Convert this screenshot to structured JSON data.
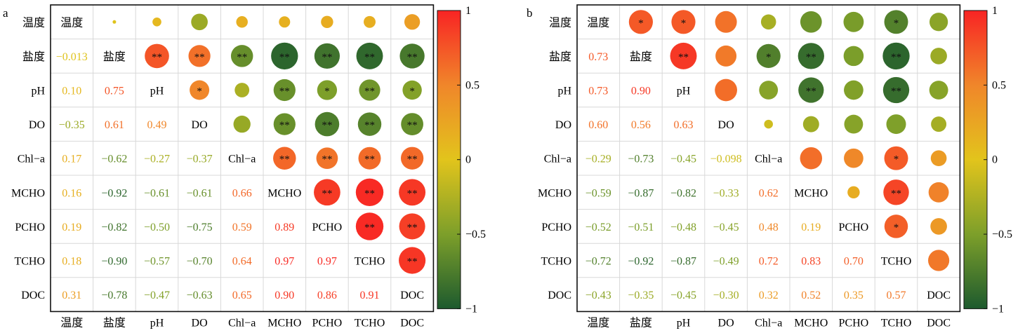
{
  "chart_data": [
    {
      "type": "heatmap",
      "panel_label": "a",
      "variables": [
        "温度",
        "盐度",
        "pH",
        "DO",
        "Chl−a",
        "MCHO",
        "PCHO",
        "TCHO",
        "DOC"
      ],
      "matrix": [
        [
          1,
          -0.013,
          0.1,
          -0.35,
          0.17,
          0.16,
          0.19,
          0.18,
          0.31
        ],
        [
          -0.013,
          1,
          0.75,
          0.61,
          -0.62,
          -0.92,
          -0.82,
          -0.9,
          -0.78
        ],
        [
          0.1,
          0.75,
          1,
          0.49,
          -0.27,
          -0.61,
          -0.5,
          -0.57,
          -0.47
        ],
        [
          -0.35,
          0.61,
          0.49,
          1,
          -0.37,
          -0.61,
          -0.75,
          -0.7,
          -0.63
        ],
        [
          0.17,
          -0.62,
          -0.27,
          -0.37,
          1,
          0.66,
          0.59,
          0.64,
          0.65
        ],
        [
          0.16,
          -0.92,
          -0.61,
          -0.61,
          0.66,
          1,
          0.89,
          0.97,
          0.9
        ],
        [
          0.19,
          -0.82,
          -0.5,
          -0.75,
          0.59,
          0.89,
          1,
          0.97,
          0.86
        ],
        [
          0.18,
          -0.9,
          -0.57,
          -0.7,
          0.64,
          0.97,
          0.97,
          1,
          0.91
        ],
        [
          0.31,
          -0.78,
          -0.47,
          -0.63,
          0.65,
          0.9,
          0.86,
          0.91,
          1
        ]
      ],
      "lower_labels": [
        [
          null,
          null,
          null,
          null,
          null,
          null,
          null,
          null,
          null
        ],
        [
          "−0.013",
          null,
          null,
          null,
          null,
          null,
          null,
          null,
          null
        ],
        [
          "0.10",
          "0.75",
          null,
          null,
          null,
          null,
          null,
          null,
          null
        ],
        [
          "−0.35",
          "0.61",
          "0.49",
          null,
          null,
          null,
          null,
          null,
          null
        ],
        [
          "0.17",
          "−0.62",
          "−0.27",
          "−0.37",
          null,
          null,
          null,
          null,
          null
        ],
        [
          "0.16",
          "−0.92",
          "−0.61",
          "−0.61",
          "0.66",
          null,
          null,
          null,
          null
        ],
        [
          "0.19",
          "−0.82",
          "−0.50",
          "−0.75",
          "0.59",
          "0.89",
          null,
          null,
          null
        ],
        [
          "0.18",
          "−0.90",
          "−0.57",
          "−0.70",
          "0.64",
          "0.97",
          "0.97",
          null,
          null
        ],
        [
          "0.31",
          "−0.78",
          "−0.47",
          "−0.63",
          "0.65",
          "0.90",
          "0.86",
          "0.91",
          null
        ]
      ],
      "significance": [
        [
          "",
          "",
          "",
          "",
          "",
          "",
          "",
          "",
          ""
        ],
        [
          "",
          "",
          "**",
          "**",
          "**",
          "**",
          "**",
          "**",
          "**"
        ],
        [
          "",
          "",
          "",
          "*",
          "",
          "**",
          "*",
          "**",
          "*"
        ],
        [
          "",
          "",
          "",
          "",
          "",
          "**",
          "**",
          "**",
          "**"
        ],
        [
          "",
          "",
          "",
          "",
          "",
          "**",
          "**",
          "**",
          "**"
        ],
        [
          "",
          "",
          "",
          "",
          "",
          "",
          "**",
          "**",
          "**"
        ],
        [
          "",
          "",
          "",
          "",
          "",
          "",
          "",
          "**",
          "**"
        ],
        [
          "",
          "",
          "",
          "",
          "",
          "",
          "",
          "",
          "**"
        ],
        [
          "",
          "",
          "",
          "",
          "",
          "",
          "",
          "",
          ""
        ]
      ],
      "colorbar": {
        "range": [
          -1,
          1
        ],
        "ticks": [
          1,
          0.5,
          0,
          -0.5,
          -1
        ],
        "tick_labels": [
          "1",
          "0.5",
          "0",
          "−0.5",
          "−1"
        ]
      },
      "grid": true
    },
    {
      "type": "heatmap",
      "panel_label": "b",
      "variables": [
        "温度",
        "盐度",
        "pH",
        "DO",
        "Chl−a",
        "MCHO",
        "PCHO",
        "TCHO",
        "DOC"
      ],
      "matrix": [
        [
          1,
          0.73,
          0.73,
          0.6,
          -0.29,
          -0.59,
          -0.52,
          -0.72,
          -0.43
        ],
        [
          0.73,
          1,
          0.9,
          0.56,
          -0.73,
          -0.87,
          -0.51,
          -0.92,
          -0.35
        ],
        [
          0.73,
          0.9,
          1,
          0.63,
          -0.45,
          -0.82,
          -0.48,
          -0.87,
          -0.45
        ],
        [
          0.6,
          0.56,
          0.63,
          1,
          -0.098,
          -0.33,
          -0.45,
          -0.49,
          -0.3
        ],
        [
          -0.29,
          -0.73,
          -0.45,
          -0.098,
          1,
          0.62,
          0.48,
          0.72,
          0.32
        ],
        [
          -0.59,
          -0.87,
          -0.82,
          -0.33,
          0.62,
          1,
          0.19,
          0.83,
          0.52
        ],
        [
          -0.52,
          -0.51,
          -0.48,
          -0.45,
          0.48,
          0.19,
          1,
          0.7,
          0.35
        ],
        [
          -0.72,
          -0.92,
          -0.87,
          -0.49,
          0.72,
          0.83,
          0.7,
          1,
          0.57
        ],
        [
          -0.43,
          -0.35,
          -0.45,
          -0.3,
          0.32,
          0.52,
          0.35,
          0.57,
          1
        ]
      ],
      "lower_labels": [
        [
          null,
          null,
          null,
          null,
          null,
          null,
          null,
          null,
          null
        ],
        [
          "0.73",
          null,
          null,
          null,
          null,
          null,
          null,
          null,
          null
        ],
        [
          "0.73",
          "0.90",
          null,
          null,
          null,
          null,
          null,
          null,
          null
        ],
        [
          "0.60",
          "0.56",
          "0.63",
          null,
          null,
          null,
          null,
          null,
          null
        ],
        [
          "−0.29",
          "−0.73",
          "−0.45",
          "−0.098",
          null,
          null,
          null,
          null,
          null
        ],
        [
          "−0.59",
          "−0.87",
          "−0.82",
          "−0.33",
          "0.62",
          null,
          null,
          null,
          null
        ],
        [
          "−0.52",
          "−0.51",
          "−0.48",
          "−0.45",
          "0.48",
          "0.19",
          null,
          null,
          null
        ],
        [
          "−0.72",
          "−0.92",
          "−0.87",
          "−0.49",
          "0.72",
          "0.83",
          "0.70",
          null,
          null
        ],
        [
          "−0.43",
          "−0.35",
          "−0.45",
          "−0.30",
          "0.32",
          "0.52",
          "0.35",
          "0.57",
          null
        ]
      ],
      "significance": [
        [
          "",
          "*",
          "*",
          "",
          "",
          "",
          "",
          "*",
          ""
        ],
        [
          "",
          "",
          "**",
          "",
          "*",
          "**",
          "",
          "**",
          ""
        ],
        [
          "",
          "",
          "",
          "",
          "",
          "**",
          "",
          "**",
          ""
        ],
        [
          "",
          "",
          "",
          "",
          "",
          "",
          "",
          "",
          ""
        ],
        [
          "",
          "",
          "",
          "",
          "",
          "",
          "",
          "*",
          ""
        ],
        [
          "",
          "",
          "",
          "",
          "",
          "",
          "",
          "**",
          ""
        ],
        [
          "",
          "",
          "",
          "",
          "",
          "",
          "",
          "*",
          ""
        ],
        [
          "",
          "",
          "",
          "",
          "",
          "",
          "",
          "",
          ""
        ],
        [
          "",
          "",
          "",
          "",
          "",
          "",
          "",
          "",
          ""
        ]
      ],
      "colorbar": {
        "range": [
          -1,
          1
        ],
        "ticks": [
          1,
          0.5,
          0,
          -0.5,
          -1
        ],
        "tick_labels": [
          "1",
          "0.5",
          "0",
          "−0.5",
          "−1"
        ]
      },
      "grid": true
    }
  ],
  "colors": {
    "positive_high": "#f82424",
    "positive_mid": "#f0862a",
    "zero": "#e2c41c",
    "negative_mid": "#7d9f2a",
    "negative_high": "#1d5a2e"
  }
}
